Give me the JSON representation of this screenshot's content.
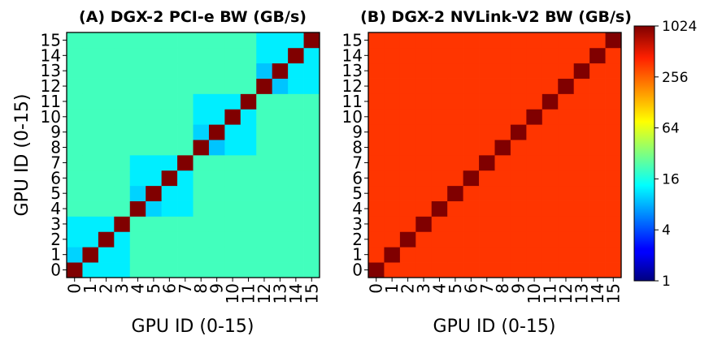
{
  "chart_data": [
    {
      "type": "heatmap",
      "title": "(A) DGX-2 PCI-e BW (GB/s)",
      "xlabel": "GPU ID (0-15)",
      "ylabel": "GPU ID (0-15)",
      "x_ticks": [
        "0",
        "1",
        "2",
        "3",
        "4",
        "5",
        "6",
        "7",
        "8",
        "9",
        "10",
        "11",
        "12",
        "13",
        "14",
        "15"
      ],
      "y_ticks": [
        "0",
        "1",
        "2",
        "3",
        "4",
        "5",
        "6",
        "7",
        "8",
        "9",
        "10",
        "11",
        "12",
        "13",
        "14",
        "15"
      ],
      "group_size": 4,
      "diagonal_value": 1024,
      "same_group_value": 12,
      "cross_group_value": 21,
      "darker_cells": [
        {
          "row": 1,
          "col": 0,
          "value": 10
        },
        {
          "row": 8,
          "col": 9,
          "value": 9
        },
        {
          "row": 4,
          "col": 5,
          "value": 10
        },
        {
          "row": 5,
          "col": 4,
          "value": 10
        },
        {
          "row": 12,
          "col": 13,
          "value": 9
        },
        {
          "row": 13,
          "col": 12,
          "value": 9
        },
        {
          "row": 9,
          "col": 8,
          "value": 10
        }
      ]
    },
    {
      "type": "heatmap",
      "title": "(B) DGX-2 NVLink-V2 BW (GB/s)",
      "xlabel": "GPU ID (0-15)",
      "ylabel": "",
      "x_ticks": [
        "0",
        "1",
        "2",
        "3",
        "4",
        "5",
        "6",
        "7",
        "8",
        "9",
        "10",
        "11",
        "12",
        "13",
        "14",
        "15"
      ],
      "y_ticks": [
        "0",
        "1",
        "2",
        "3",
        "4",
        "5",
        "6",
        "7",
        "8",
        "9",
        "10",
        "11",
        "12",
        "13",
        "14",
        "15"
      ],
      "diagonal_value": 1024,
      "off_diagonal_value": 300
    }
  ],
  "colorbar": {
    "colormap": "jet",
    "scale": "log2",
    "range": [
      1,
      1024
    ],
    "tick_values": [
      1,
      4,
      16,
      64,
      256,
      1024
    ],
    "tick_labels": [
      "1",
      "4",
      "16",
      "64",
      "256",
      "1024"
    ]
  }
}
